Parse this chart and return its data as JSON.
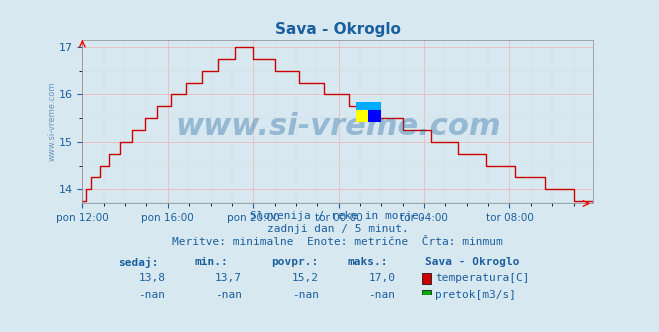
{
  "title": "Sava - Okroglo",
  "title_color": "#1a5f9e",
  "bg_color": "#d8e8f0",
  "plot_bg_color": "#d8e8f0",
  "line_color": "#cc0000",
  "line_color2": "#0000cc",
  "grid_color": "#ff9999",
  "grid_color2": "#cccccc",
  "ylabel_color": "#1a5f9e",
  "xlabel_color": "#1a5f9e",
  "yticks": [
    14,
    15,
    16,
    17
  ],
  "ylim": [
    13.7,
    17.15
  ],
  "xlim": [
    0,
    287
  ],
  "xtick_labels": [
    "pon 12:00",
    "pon 16:00",
    "pon 20:00",
    "tor 00:00",
    "tor 04:00",
    "tor 08:00"
  ],
  "xtick_positions": [
    0,
    48,
    96,
    144,
    192,
    240
  ],
  "watermark": "www.si-vreme.com",
  "watermark_color": "#1a5f9e",
  "subtitle1": "Slovenija / reke in morje.",
  "subtitle2": "zadnji dan / 5 minut.",
  "subtitle3": "Meritve: minimalne  Enote: metrične  Črta: minmum",
  "subtitle_color": "#1a5f9e",
  "table_headers": [
    "sedaj:",
    "min.:",
    "povpr.:",
    "maks.:"
  ],
  "table_values": [
    "13,8",
    "13,7",
    "15,2",
    "17,0"
  ],
  "table_values2": [
    "-nan",
    "-nan",
    "-nan",
    "-nan"
  ],
  "legend_label1": "temperatura[C]",
  "legend_label2": "pretok[m3/s]",
  "legend_color1": "#cc0000",
  "legend_color2": "#00aa00",
  "station_name": "Sava - Okroglo",
  "watermark_icon_yellow": "#ffff00",
  "watermark_icon_blue": "#0000ff",
  "watermark_icon_cyan": "#00aaff"
}
